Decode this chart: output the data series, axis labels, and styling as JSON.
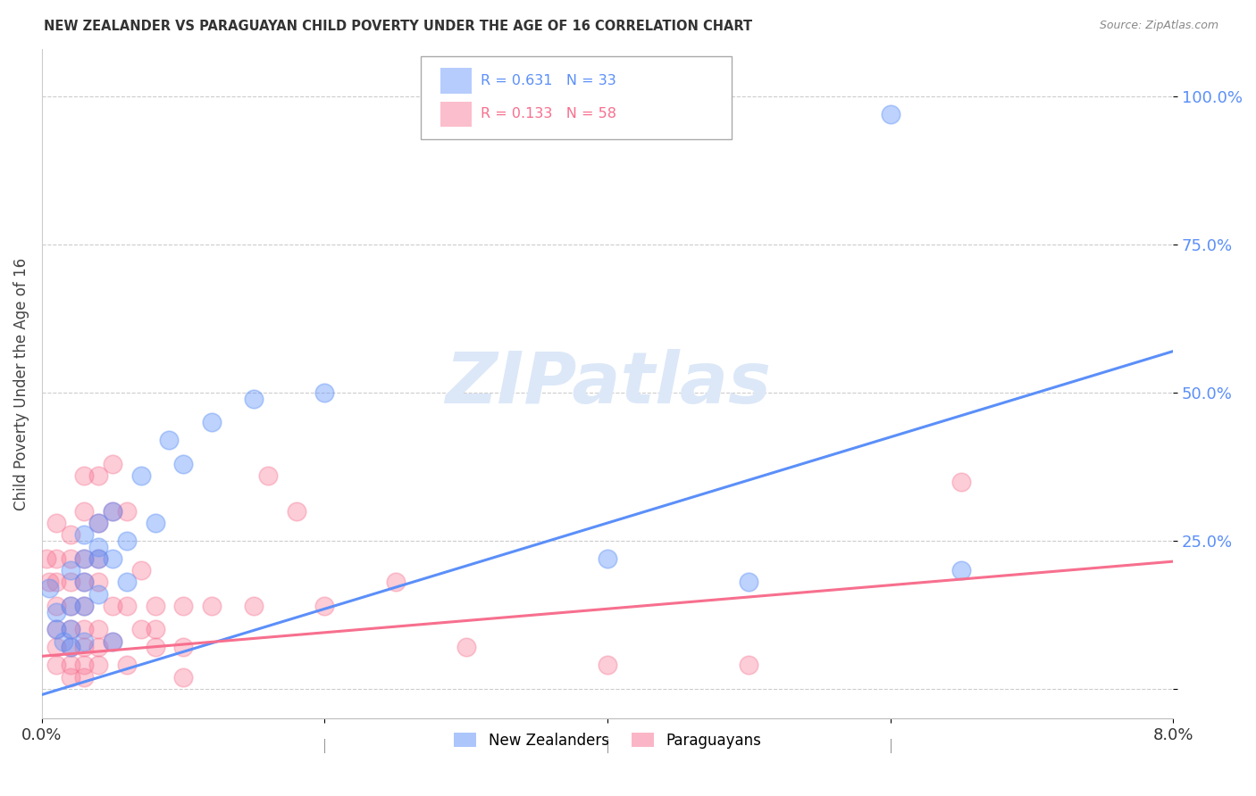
{
  "title": "NEW ZEALANDER VS PARAGUAYAN CHILD POVERTY UNDER THE AGE OF 16 CORRELATION CHART",
  "source": "Source: ZipAtlas.com",
  "ylabel": "Child Poverty Under the Age of 16",
  "xlim": [
    0.0,
    0.08
  ],
  "ylim": [
    -0.05,
    1.08
  ],
  "yticks": [
    0.0,
    0.25,
    0.5,
    0.75,
    1.0
  ],
  "ytick_labels": [
    "",
    "25.0%",
    "50.0%",
    "75.0%",
    "100.0%"
  ],
  "xticks": [
    0.0,
    0.02,
    0.04,
    0.06,
    0.08
  ],
  "xtick_labels": [
    "0.0%",
    "",
    "",
    "",
    "8.0%"
  ],
  "blue_color": "#5b8ff9",
  "pink_color": "#f76f8e",
  "blue_label": "New Zealanders",
  "pink_label": "Paraguayans",
  "legend_r_blue": "R = 0.631",
  "legend_n_blue": "N = 33",
  "legend_r_pink": "R = 0.133",
  "legend_n_pink": "N = 58",
  "watermark": "ZIPatlas",
  "blue_line": {
    "x0": 0.0,
    "y0": -0.01,
    "x1": 0.08,
    "y1": 0.57
  },
  "pink_line": {
    "x0": 0.0,
    "y0": 0.055,
    "x1": 0.08,
    "y1": 0.215
  },
  "nz_points": [
    [
      0.0005,
      0.17
    ],
    [
      0.001,
      0.13
    ],
    [
      0.001,
      0.1
    ],
    [
      0.0015,
      0.08
    ],
    [
      0.002,
      0.2
    ],
    [
      0.002,
      0.14
    ],
    [
      0.002,
      0.1
    ],
    [
      0.002,
      0.07
    ],
    [
      0.003,
      0.26
    ],
    [
      0.003,
      0.22
    ],
    [
      0.003,
      0.18
    ],
    [
      0.003,
      0.14
    ],
    [
      0.003,
      0.08
    ],
    [
      0.004,
      0.28
    ],
    [
      0.004,
      0.24
    ],
    [
      0.004,
      0.22
    ],
    [
      0.004,
      0.16
    ],
    [
      0.005,
      0.3
    ],
    [
      0.005,
      0.22
    ],
    [
      0.005,
      0.08
    ],
    [
      0.006,
      0.25
    ],
    [
      0.006,
      0.18
    ],
    [
      0.007,
      0.36
    ],
    [
      0.008,
      0.28
    ],
    [
      0.009,
      0.42
    ],
    [
      0.01,
      0.38
    ],
    [
      0.012,
      0.45
    ],
    [
      0.015,
      0.49
    ],
    [
      0.02,
      0.5
    ],
    [
      0.04,
      0.22
    ],
    [
      0.05,
      0.18
    ],
    [
      0.06,
      0.97
    ],
    [
      0.065,
      0.2
    ]
  ],
  "py_points": [
    [
      0.0003,
      0.22
    ],
    [
      0.0005,
      0.18
    ],
    [
      0.001,
      0.28
    ],
    [
      0.001,
      0.22
    ],
    [
      0.001,
      0.18
    ],
    [
      0.001,
      0.14
    ],
    [
      0.001,
      0.1
    ],
    [
      0.001,
      0.07
    ],
    [
      0.001,
      0.04
    ],
    [
      0.002,
      0.26
    ],
    [
      0.002,
      0.22
    ],
    [
      0.002,
      0.18
    ],
    [
      0.002,
      0.14
    ],
    [
      0.002,
      0.1
    ],
    [
      0.002,
      0.07
    ],
    [
      0.002,
      0.04
    ],
    [
      0.002,
      0.02
    ],
    [
      0.003,
      0.36
    ],
    [
      0.003,
      0.3
    ],
    [
      0.003,
      0.22
    ],
    [
      0.003,
      0.18
    ],
    [
      0.003,
      0.14
    ],
    [
      0.003,
      0.1
    ],
    [
      0.003,
      0.07
    ],
    [
      0.003,
      0.04
    ],
    [
      0.003,
      0.02
    ],
    [
      0.004,
      0.36
    ],
    [
      0.004,
      0.28
    ],
    [
      0.004,
      0.22
    ],
    [
      0.004,
      0.18
    ],
    [
      0.004,
      0.1
    ],
    [
      0.004,
      0.07
    ],
    [
      0.004,
      0.04
    ],
    [
      0.005,
      0.38
    ],
    [
      0.005,
      0.3
    ],
    [
      0.005,
      0.14
    ],
    [
      0.005,
      0.08
    ],
    [
      0.006,
      0.3
    ],
    [
      0.006,
      0.14
    ],
    [
      0.006,
      0.04
    ],
    [
      0.007,
      0.2
    ],
    [
      0.007,
      0.1
    ],
    [
      0.008,
      0.14
    ],
    [
      0.008,
      0.1
    ],
    [
      0.008,
      0.07
    ],
    [
      0.01,
      0.14
    ],
    [
      0.01,
      0.07
    ],
    [
      0.01,
      0.02
    ],
    [
      0.012,
      0.14
    ],
    [
      0.015,
      0.14
    ],
    [
      0.016,
      0.36
    ],
    [
      0.018,
      0.3
    ],
    [
      0.02,
      0.14
    ],
    [
      0.025,
      0.18
    ],
    [
      0.03,
      0.07
    ],
    [
      0.04,
      0.04
    ],
    [
      0.05,
      0.04
    ],
    [
      0.065,
      0.35
    ]
  ]
}
